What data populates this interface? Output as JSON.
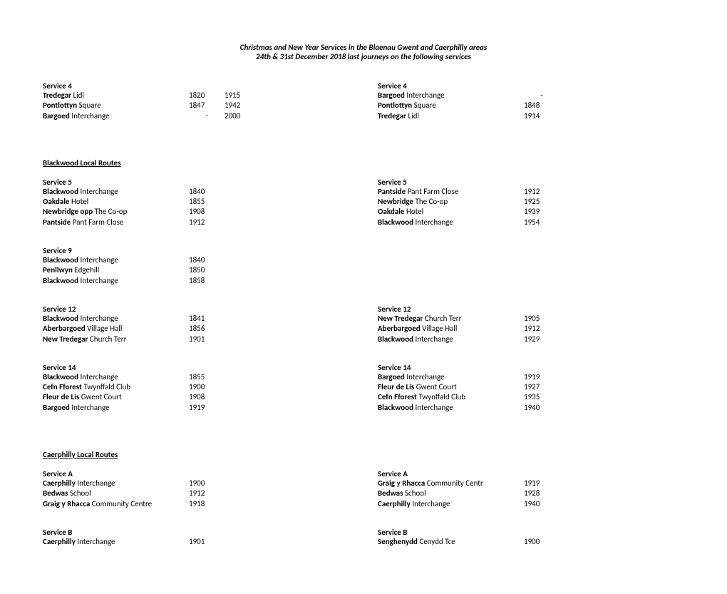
{
  "title_line1": "Christmas  and New Year Services in the Blaenau Gwent and Caerphilly areas",
  "title_line2": "24th & 31st December 2018 last journeys on the following services",
  "section_blackwood": "Blackwood Local Routes",
  "section_caerphilly": "Caerphilly Local Routes",
  "s4_left_name": "Service 4",
  "s4_left": [
    {
      "b": "Tredegar",
      "r": " Lidl",
      "t1": "1820",
      "t2": "1915"
    },
    {
      "b": "Pontlottyn",
      "r": " Square",
      "t1": "1847",
      "t2": "1942"
    },
    {
      "b": "Bargoed",
      "r": " Interchange",
      "t1": "-",
      "t2": "2000"
    }
  ],
  "s4_right_name": "Service 4",
  "s4_right": [
    {
      "b": "Bargoed",
      "r": " Interchange",
      "t1": "-"
    },
    {
      "b": "Pontlottyn",
      "r": " Square",
      "t1": "1848"
    },
    {
      "b": "Tredegar",
      "r": " Lidl",
      "t1": "1914"
    }
  ],
  "s5_left_name": "Service 5",
  "s5_left": [
    {
      "b": "Blackwood",
      "r": " Interchange",
      "t1": "1840"
    },
    {
      "b": "Oakdale",
      "r": " Hotel",
      "t1": "1855"
    },
    {
      "b": "Newbridge opp",
      "r": " The Co-op",
      "t1": "1908"
    },
    {
      "b": "Pantside",
      "r": " Pant Farm Close",
      "t1": "1912"
    }
  ],
  "s5_right_name": "Service 5",
  "s5_right": [
    {
      "b": "Pantside",
      "r": " Pant Farm Close",
      "t1": "1912"
    },
    {
      "b": "Newbridge",
      "r": " The Co-op",
      "t1": "1925"
    },
    {
      "b": "Oakdale",
      "r": " Hotel",
      "t1": "1939"
    },
    {
      "b": "Blackwood",
      "r": " Interchange",
      "t1": "1954"
    }
  ],
  "s9_left_name": "Service 9",
  "s9_left": [
    {
      "b": "Blackwood",
      "r": " Interchange",
      "t1": "1840"
    },
    {
      "b": "Penllwyn",
      "r": " Edgehill",
      "t1": "1850"
    },
    {
      "b": "Blackwood",
      "r": " Interchange",
      "t1": "1858"
    }
  ],
  "s12_left_name": "Service 12",
  "s12_left": [
    {
      "b": "Blackwood",
      "r": " Interchange",
      "t1": "1841"
    },
    {
      "b": "Aberbargoed",
      "r": " Village Hall",
      "t1": "1856"
    },
    {
      "b": "New Tredegar",
      "r": " Church Terr",
      "t1": "1901"
    }
  ],
  "s12_right_name": "Service 12",
  "s12_right": [
    {
      "b": "New Tredegar",
      "r": " Church Terr",
      "t1": "1905"
    },
    {
      "b": "Aberbargoed",
      "r": " Village Hall",
      "t1": "1912"
    },
    {
      "b": "Blackwood",
      "r": " Interchange",
      "t1": "1929"
    }
  ],
  "s14_left_name": "Service 14",
  "s14_left": [
    {
      "b": "Blackwood",
      "r": " Interchange",
      "t1": "1855"
    },
    {
      "b": "Cefn Fforest",
      "r": " Twynffald Club",
      "t1": "1900"
    },
    {
      "b": "Fleur de Lis",
      "r": " Gwent Court",
      "t1": "1908"
    },
    {
      "b": "Bargoed",
      "r": " Interchange",
      "t1": "1919"
    }
  ],
  "s14_right_name": "Service 14",
  "s14_right": [
    {
      "b": "Bargoed",
      "r": " Interchange",
      "t1": "1919"
    },
    {
      "b": "Fleur de Lis",
      "r": " Gwent Court",
      "t1": "1927"
    },
    {
      "b": "Cefn Fforest",
      "r": " Twynffald Club",
      "t1": "1935"
    },
    {
      "b": "Blackwood",
      "r": " Interchange",
      "t1": "1940"
    }
  ],
  "sa_left_name": "Service A",
  "sa_left": [
    {
      "b": "Caerphilly",
      "r": " Interchange",
      "t1": "1900"
    },
    {
      "b": "Bedwas",
      "r": " School",
      "t1": "1912"
    },
    {
      "b": "Graig y Rhacca",
      "r": " Community Centre",
      "t1": "1918"
    }
  ],
  "sa_right_name": "Service A",
  "sa_right": [
    {
      "b": "Graig y Rhacca",
      "r": " Community Centr",
      "t1": "1919"
    },
    {
      "b": "Bedwas",
      "r": " School",
      "t1": "1928"
    },
    {
      "b": "Caerphilly",
      "r": " Interchange",
      "t1": "1940"
    }
  ],
  "sb_left_name": "Service B",
  "sb_left": [
    {
      "b": "Caerphilly",
      "r": " Interchange",
      "t1": "1901"
    }
  ],
  "sb_right_name": "Service B",
  "sb_right": [
    {
      "b": "Senghenydd",
      "r": " Cenydd Tce",
      "t1": "1900"
    }
  ]
}
